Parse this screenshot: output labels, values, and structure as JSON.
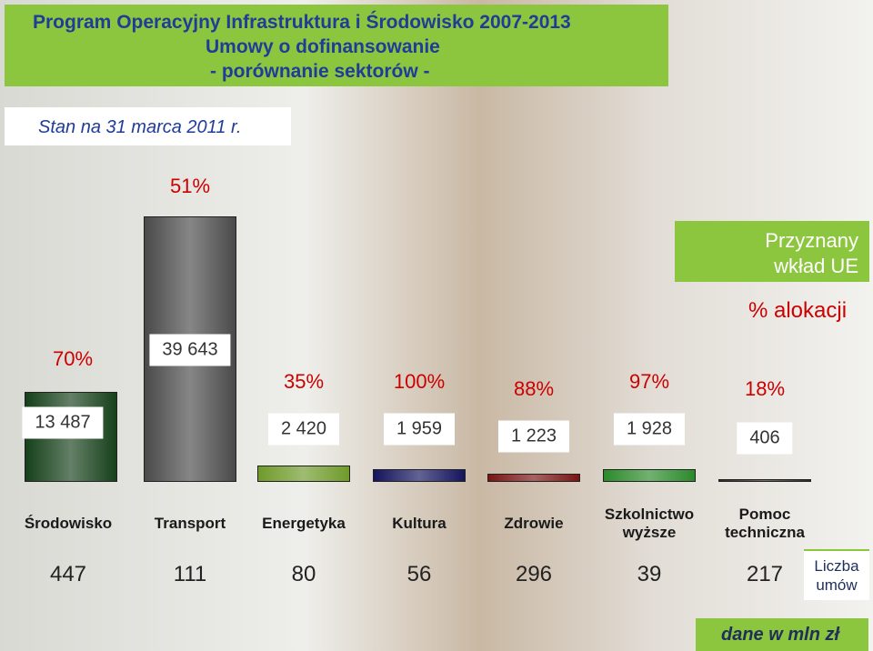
{
  "chart_data": {
    "type": "bar",
    "title": [
      "Program Operacyjny Infrastruktura i Środowisko 2007-2013",
      "Umowy o dofinansowanie",
      "- porównanie sektorów -"
    ],
    "subtitle": "Stan na 31 marca 2011 r.",
    "note": "dane w mln zł",
    "categories": [
      "Środowisko",
      "Transport",
      "Energetyka",
      "Kultura",
      "Zdrowie",
      "Szkolnictwo wyższe",
      "Pomoc techniczna"
    ],
    "colors": [
      "#16401a",
      "#4a4a4a",
      "#6f9a2a",
      "#14145e",
      "#7a1414",
      "#2b8a2b",
      "#2a2a2a"
    ],
    "series": [
      {
        "name": "Przyznany wkład UE",
        "values": [
          13487,
          39643,
          2420,
          1959,
          1223,
          1928,
          406
        ],
        "value_labels": [
          "13 487",
          "39 643",
          "2 420",
          "1 959",
          "1 223",
          "1 928",
          "406"
        ]
      },
      {
        "name": "% alokacji",
        "color": "#cc0000",
        "values": [
          70,
          51,
          35,
          100,
          88,
          97,
          18
        ],
        "value_labels": [
          "70%",
          "51%",
          "35%",
          "100%",
          "88%",
          "97%",
          "18%"
        ]
      },
      {
        "name": "Liczba umów",
        "color": "#222222",
        "values": [
          447,
          111,
          80,
          56,
          296,
          39,
          217
        ]
      }
    ]
  }
}
